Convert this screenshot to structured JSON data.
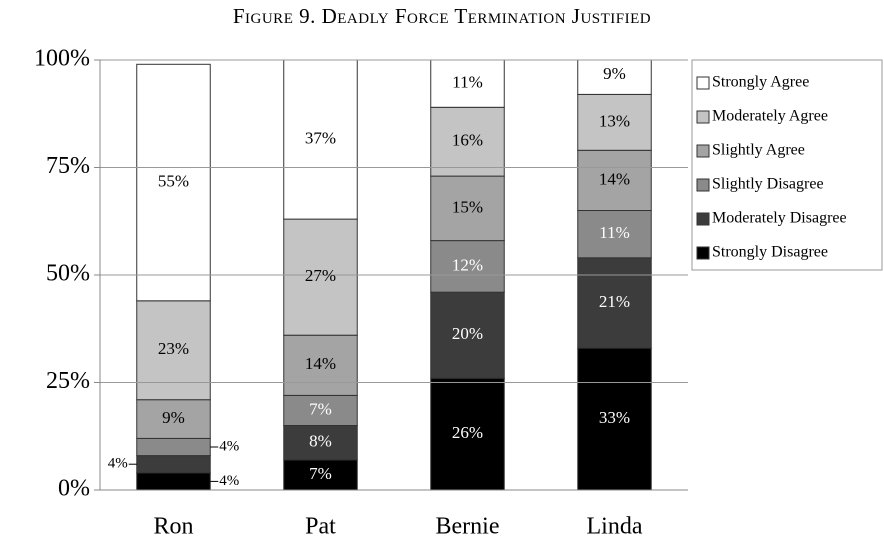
{
  "chart_data": {
    "type": "stacked_bar",
    "title": "Figure 9. Deadly Force Termination Justified",
    "categories": [
      "Ron",
      "Pat",
      "Bernie",
      "Linda"
    ],
    "series": [
      {
        "name": "Strongly Disagree",
        "color": "#000000",
        "values": [
          4,
          7,
          26,
          33
        ],
        "value_labels": [
          "4%",
          "7%",
          "26%",
          "33%"
        ]
      },
      {
        "name": "Moderately Disagree",
        "color": "#3c3c3c",
        "values": [
          4,
          8,
          20,
          21
        ],
        "value_labels": [
          "4%",
          "8%",
          "20%",
          "21%"
        ]
      },
      {
        "name": "Slightly Disagree",
        "color": "#8a8a8a",
        "values": [
          4,
          7,
          12,
          11
        ],
        "value_labels": [
          "4%",
          "7%",
          "12%",
          "11%"
        ]
      },
      {
        "name": "Slightly Agree",
        "color": "#a4a4a4",
        "values": [
          9,
          14,
          15,
          14
        ],
        "value_labels": [
          "9%",
          "14%",
          "15%",
          "14%"
        ]
      },
      {
        "name": "Moderately Agree",
        "color": "#c4c4c4",
        "values": [
          23,
          27,
          16,
          13
        ],
        "value_labels": [
          "23%",
          "27%",
          "16%",
          "13%"
        ]
      },
      {
        "name": "Strongly Agree",
        "color": "#ffffff",
        "values": [
          55,
          37,
          11,
          9
        ],
        "value_labels": [
          "55%",
          "37%",
          "11%",
          "9%"
        ]
      }
    ],
    "ylim": [
      0,
      100
    ],
    "yticks": [
      {
        "value": 0,
        "label": "0%"
      },
      {
        "value": 25,
        "label": "25%"
      },
      {
        "value": 50,
        "label": "50%"
      },
      {
        "value": 75,
        "label": "75%"
      },
      {
        "value": 100,
        "label": "100%"
      }
    ],
    "grid": true,
    "legend": "right"
  }
}
